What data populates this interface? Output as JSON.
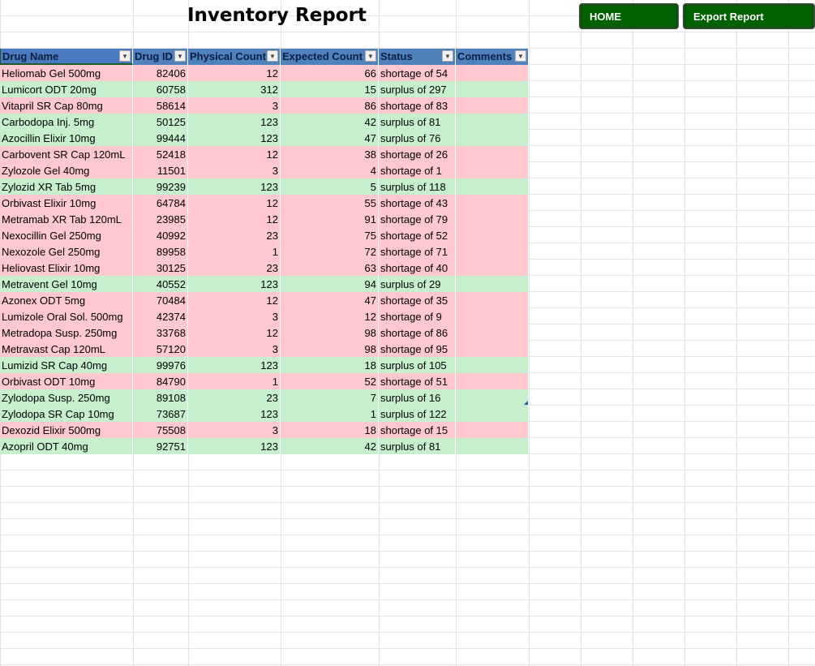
{
  "title": "Inventory Report",
  "buttons": {
    "home": "HOME",
    "export": "Export Report"
  },
  "columns": [
    "Drug Name",
    "Drug ID",
    "Physical Count",
    "Expected Count",
    "Status",
    "Comments"
  ],
  "dropdown_icon": "triangle-down-icon",
  "colors": {
    "shortage": "#ffc7ce",
    "surplus": "#c6efce",
    "header": "#4f81bd",
    "button": "#006100"
  },
  "rows": [
    {
      "name": "Heliomab Gel 500mg",
      "id": "82406",
      "physical": "12",
      "expected": "66",
      "status": "shortage of 54",
      "type": "shortage"
    },
    {
      "name": "Lumicort ODT 20mg",
      "id": "60758",
      "physical": "312",
      "expected": "15",
      "status": "surplus of 297",
      "type": "surplus"
    },
    {
      "name": "Vitapril SR Cap 80mg",
      "id": "58614",
      "physical": "3",
      "expected": "86",
      "status": "shortage of 83",
      "type": "shortage"
    },
    {
      "name": "Carbodopa Inj. 5mg",
      "id": "50125",
      "physical": "123",
      "expected": "42",
      "status": "surplus of 81",
      "type": "surplus"
    },
    {
      "name": "Azocillin Elixir 10mg",
      "id": "99444",
      "physical": "123",
      "expected": "47",
      "status": "surplus of 76",
      "type": "surplus"
    },
    {
      "name": "Carbovent SR Cap 120mL",
      "id": "52418",
      "physical": "12",
      "expected": "38",
      "status": "shortage of 26",
      "type": "shortage"
    },
    {
      "name": "Zylozole Gel 40mg",
      "id": "11501",
      "physical": "3",
      "expected": "4",
      "status": "shortage of 1",
      "type": "shortage"
    },
    {
      "name": "Zylozid XR Tab 5mg",
      "id": "99239",
      "physical": "123",
      "expected": "5",
      "status": "surplus of 118",
      "type": "surplus"
    },
    {
      "name": "Orbivast Elixir 10mg",
      "id": "64784",
      "physical": "12",
      "expected": "55",
      "status": "shortage of 43",
      "type": "shortage"
    },
    {
      "name": "Metramab XR Tab 120mL",
      "id": "23985",
      "physical": "12",
      "expected": "91",
      "status": "shortage of 79",
      "type": "shortage"
    },
    {
      "name": "Nexocillin Gel 250mg",
      "id": "40992",
      "physical": "23",
      "expected": "75",
      "status": "shortage of 52",
      "type": "shortage"
    },
    {
      "name": "Nexozole Gel 250mg",
      "id": "89958",
      "physical": "1",
      "expected": "72",
      "status": "shortage of 71",
      "type": "shortage"
    },
    {
      "name": "Heliovast Elixir 10mg",
      "id": "30125",
      "physical": "23",
      "expected": "63",
      "status": "shortage of 40",
      "type": "shortage"
    },
    {
      "name": "Metravent Gel 10mg",
      "id": "40552",
      "physical": "123",
      "expected": "94",
      "status": "surplus of 29",
      "type": "surplus"
    },
    {
      "name": "Azonex ODT 5mg",
      "id": "70484",
      "physical": "12",
      "expected": "47",
      "status": "shortage of 35",
      "type": "shortage"
    },
    {
      "name": "Lumizole Oral Sol. 500mg",
      "id": "42374",
      "physical": "3",
      "expected": "12",
      "status": "shortage of 9",
      "type": "shortage"
    },
    {
      "name": "Metradopa Susp. 250mg",
      "id": "33768",
      "physical": "12",
      "expected": "98",
      "status": "shortage of 86",
      "type": "shortage"
    },
    {
      "name": "Metravast Cap 120mL",
      "id": "57120",
      "physical": "3",
      "expected": "98",
      "status": "shortage of 95",
      "type": "shortage"
    },
    {
      "name": "Lumizid SR Cap 40mg",
      "id": "99976",
      "physical": "123",
      "expected": "18",
      "status": "surplus of 105",
      "type": "surplus"
    },
    {
      "name": "Orbivast ODT 10mg",
      "id": "84790",
      "physical": "1",
      "expected": "52",
      "status": "shortage of 51",
      "type": "shortage"
    },
    {
      "name": "Zylodopa Susp. 250mg",
      "id": "89108",
      "physical": "23",
      "expected": "7",
      "status": "surplus of 16",
      "type": "surplus"
    },
    {
      "name": "Zylodopa SR Cap 10mg",
      "id": "73687",
      "physical": "123",
      "expected": "1",
      "status": "surplus of 122",
      "type": "surplus"
    },
    {
      "name": "Dexozid Elixir 500mg",
      "id": "75508",
      "physical": "3",
      "expected": "18",
      "status": "shortage of 15",
      "type": "shortage"
    },
    {
      "name": "Azopril ODT 40mg",
      "id": "92751",
      "physical": "123",
      "expected": "42",
      "status": "surplus of 81",
      "type": "surplus"
    }
  ]
}
